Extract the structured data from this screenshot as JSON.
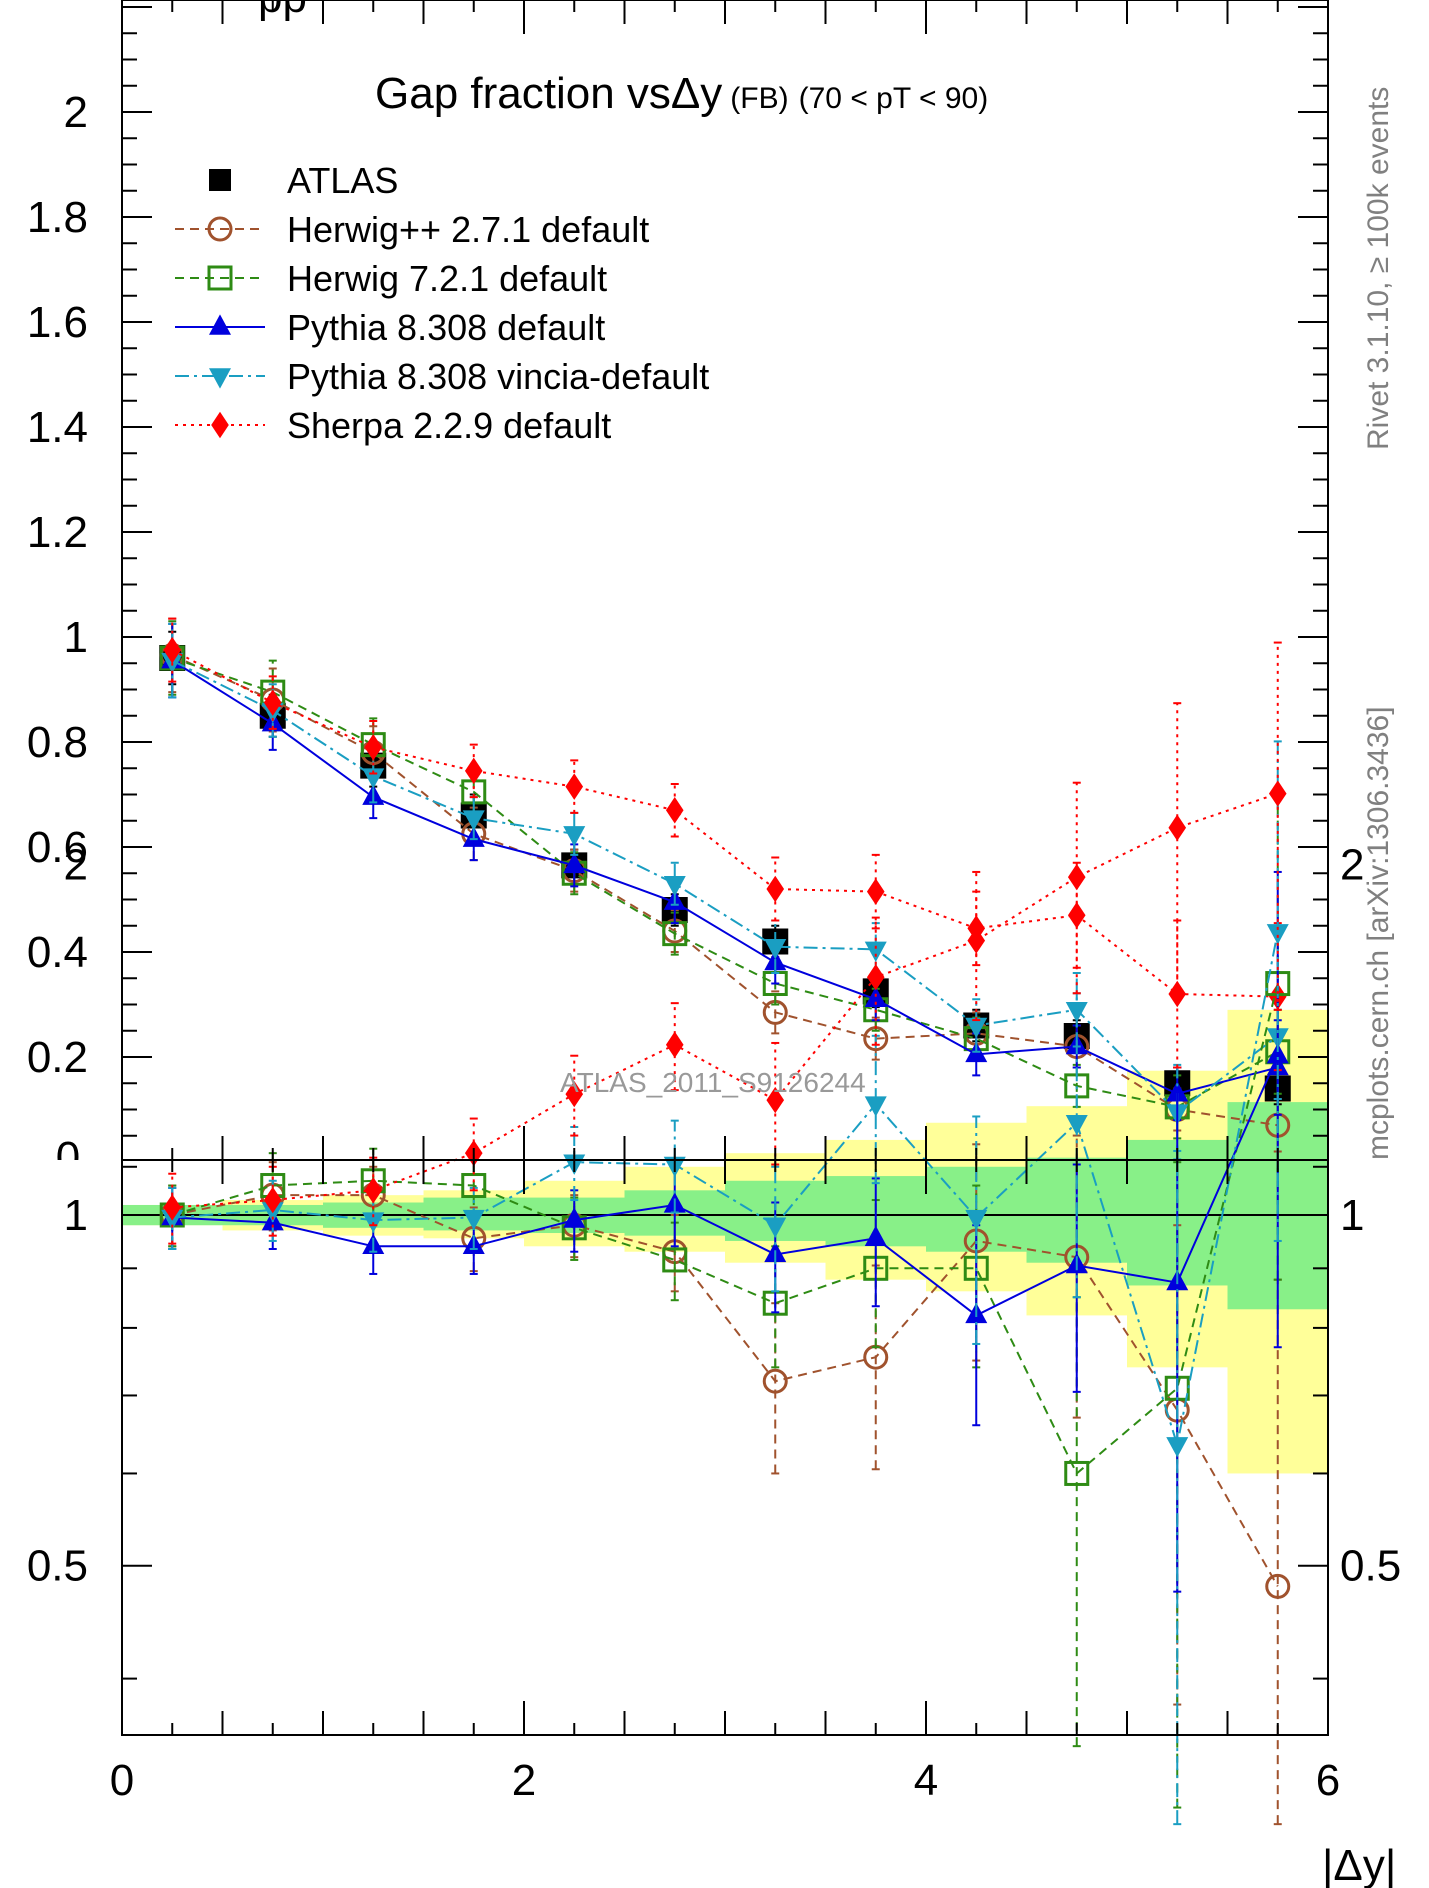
{
  "chart_data": [
    {
      "type": "line",
      "title": "Gap fraction vs",
      "title_symbol": "Δy",
      "title_suffix_small": "(FB)",
      "title_range": "(70 < pT <  90)",
      "xlabel": "|Δy|",
      "ylabel": "",
      "xlim": [
        0,
        6
      ],
      "ylim": [
        0,
        2.2
      ],
      "y_ticklabels": [
        "0.2",
        "0.4",
        "0.6",
        "0.8",
        "1",
        "1.2",
        "1.4",
        "1.6",
        "1.8",
        "2"
      ],
      "legend_position": "top-left",
      "x": [
        0.25,
        0.75,
        1.25,
        1.75,
        2.25,
        2.75,
        3.25,
        3.75,
        4.25,
        4.75,
        5.25,
        5.75
      ],
      "series": [
        {
          "name": "ATLAS",
          "color": "#000000",
          "marker": "square",
          "values": [
            0.96,
            0.85,
            0.755,
            0.66,
            0.565,
            0.48,
            0.42,
            0.325,
            0.26,
            0.24,
            0.15,
            0.14
          ],
          "err": [
            0.05,
            0.04,
            0.04,
            0.04,
            0.03,
            0.03,
            0.03,
            0.03,
            0.03,
            0.03,
            0.03,
            0.03
          ]
        },
        {
          "name": "Herwig++ 2.7.1 default",
          "color": "#a0522d",
          "marker": "circle-open",
          "values": [
            0.965,
            0.88,
            0.78,
            0.625,
            0.555,
            0.44,
            0.285,
            0.235,
            0.245,
            0.22,
            0.1,
            0.07
          ],
          "err": [
            0.07,
            0.06,
            0.05,
            0.05,
            0.04,
            0.04,
            0.04,
            0.04,
            0.04,
            0.04,
            0.04,
            0.05
          ]
        },
        {
          "name": "Herwig 7.2.1 default",
          "color": "#2e8b14",
          "marker": "square-open",
          "values": [
            0.96,
            0.895,
            0.795,
            0.705,
            0.55,
            0.435,
            0.34,
            0.29,
            0.235,
            0.145,
            0.105,
            0.21
          ],
          "err": [
            0.07,
            0.06,
            0.05,
            0.05,
            0.04,
            0.04,
            0.04,
            0.04,
            0.04,
            0.04,
            0.06,
            0.08
          ]
        },
        {
          "name": "Pythia 8.308 default",
          "color": "#0000dd",
          "marker": "triangle-up",
          "values": [
            0.955,
            0.835,
            0.695,
            0.615,
            0.565,
            0.495,
            0.38,
            0.31,
            0.205,
            0.22,
            0.13,
            0.18
          ],
          "err": [
            0.07,
            0.05,
            0.04,
            0.04,
            0.04,
            0.04,
            0.04,
            0.04,
            0.04,
            0.04,
            0.05,
            0.09
          ]
        },
        {
          "name": "Pythia 8.308 vincia-default",
          "color": "#1a9ec2",
          "marker": "triangle-down",
          "values": [
            0.955,
            0.86,
            0.735,
            0.655,
            0.625,
            0.53,
            0.41,
            0.405,
            0.26,
            0.29,
            0.095,
            0.24
          ],
          "err": [
            0.07,
            0.05,
            0.05,
            0.04,
            0.04,
            0.04,
            0.05,
            0.05,
            0.05,
            0.07,
            0.09,
            0.12
          ]
        },
        {
          "name": "Sherpa 2.2.9 default",
          "color": "#ff0000",
          "marker": "diamond",
          "values": [
            0.975,
            0.875,
            0.79,
            0.745,
            0.715,
            0.67,
            0.52,
            0.515,
            0.445,
            0.47,
            0.32,
            0.315
          ],
          "err": [
            0.06,
            0.05,
            0.05,
            0.05,
            0.05,
            0.05,
            0.06,
            0.07,
            0.07,
            0.1,
            0.14,
            0.14
          ]
        }
      ],
      "annotation": "ATLAS_2011_S9126244"
    },
    {
      "type": "line",
      "title": "",
      "xlabel": "|Δy|",
      "ylabel": "",
      "xlim": [
        0,
        6
      ],
      "ylim": [
        0.35,
        2.45
      ],
      "y_scale": "log",
      "x_ticklabels": [
        "0",
        "2",
        "4",
        "6"
      ],
      "y_ticklabels": [
        "0.5",
        "1",
        "2"
      ],
      "reference_line": 1,
      "band_edges": [
        0,
        0.5,
        1,
        1.5,
        2,
        2.5,
        3,
        3.5,
        4,
        4.5,
        5,
        5.5,
        6
      ],
      "band_inner": [
        [
          0.98,
          1.02
        ],
        [
          0.98,
          1.02
        ],
        [
          0.975,
          1.025
        ],
        [
          0.97,
          1.035
        ],
        [
          0.965,
          1.035
        ],
        [
          0.96,
          1.05
        ],
        [
          0.95,
          1.07
        ],
        [
          0.94,
          1.08
        ],
        [
          0.93,
          1.1
        ],
        [
          0.91,
          1.12
        ],
        [
          0.87,
          1.16
        ],
        [
          0.83,
          1.25
        ]
      ],
      "band_outer": [
        [
          0.98,
          1.02
        ],
        [
          0.97,
          1.03
        ],
        [
          0.96,
          1.04
        ],
        [
          0.955,
          1.05
        ],
        [
          0.94,
          1.07
        ],
        [
          0.93,
          1.1
        ],
        [
          0.91,
          1.13
        ],
        [
          0.88,
          1.16
        ],
        [
          0.86,
          1.2
        ],
        [
          0.82,
          1.24
        ],
        [
          0.74,
          1.33
        ],
        [
          0.6,
          1.5
        ]
      ],
      "x": [
        0.25,
        0.75,
        1.25,
        1.75,
        2.25,
        2.75,
        3.25,
        3.75,
        4.25,
        4.75,
        5.25,
        5.75
      ],
      "series": [
        {
          "name": "Herwig++ 2.7.1 default",
          "color": "#a0522d",
          "marker": "circle-open",
          "values": [
            1.0,
            1.04,
            1.04,
            0.955,
            0.98,
            0.93,
            0.72,
            0.755,
            0.95,
            0.92,
            0.68,
            0.48
          ],
          "err": [
            0.06,
            0.07,
            0.06,
            0.06,
            0.06,
            0.07,
            0.12,
            0.15,
            0.2,
            0.25,
            0.3,
            0.4
          ]
        },
        {
          "name": "Herwig 7.2.1 default",
          "color": "#2e8b14",
          "marker": "square-open",
          "values": [
            1.0,
            1.06,
            1.07,
            1.06,
            0.975,
            0.915,
            0.84,
            0.9,
            0.9,
            0.6,
            0.71,
            1.58
          ],
          "err": [
            0.06,
            0.07,
            0.07,
            0.07,
            0.06,
            0.07,
            0.1,
            0.13,
            0.16,
            0.25,
            0.4,
            0.7
          ]
        },
        {
          "name": "Pythia 8.308 default",
          "color": "#0000dd",
          "marker": "triangle-up",
          "values": [
            0.995,
            0.985,
            0.94,
            0.94,
            0.99,
            1.02,
            0.925,
            0.955,
            0.82,
            0.905,
            0.875,
            1.37
          ],
          "err": [
            0.06,
            0.05,
            0.05,
            0.05,
            0.06,
            0.08,
            0.1,
            0.12,
            0.16,
            0.2,
            0.4,
            0.6
          ]
        },
        {
          "name": "Pythia 8.308 vincia-default",
          "color": "#1a9ec2",
          "marker": "triangle-down",
          "values": [
            0.995,
            1.01,
            0.99,
            0.995,
            1.11,
            1.105,
            0.98,
            1.245,
            0.995,
            1.2,
            0.635,
            1.75
          ],
          "err": [
            0.06,
            0.06,
            0.06,
            0.06,
            0.08,
            0.1,
            0.12,
            0.18,
            0.22,
            0.35,
            0.5,
            0.8
          ]
        },
        {
          "name": "Sherpa 2.2.9 default",
          "color": "#ff0000",
          "marker": "diamond",
          "values": [
            1.015,
            1.03,
            1.05,
            1.13,
            1.27,
            1.4,
            1.255,
            1.6,
            1.72,
            1.95,
            2.15,
            2.3
          ],
          "err": [
            0.07,
            0.07,
            0.07,
            0.08,
            0.1,
            0.12,
            0.15,
            0.2,
            0.25,
            0.4,
            0.6,
            0.8
          ]
        }
      ]
    }
  ],
  "side_label_left": "Rivet 3.1.10, ≥ 100k events",
  "side_label_right": "mcplots.cern.ch [arXiv:1306.3436]",
  "top_partial_text": "pp"
}
